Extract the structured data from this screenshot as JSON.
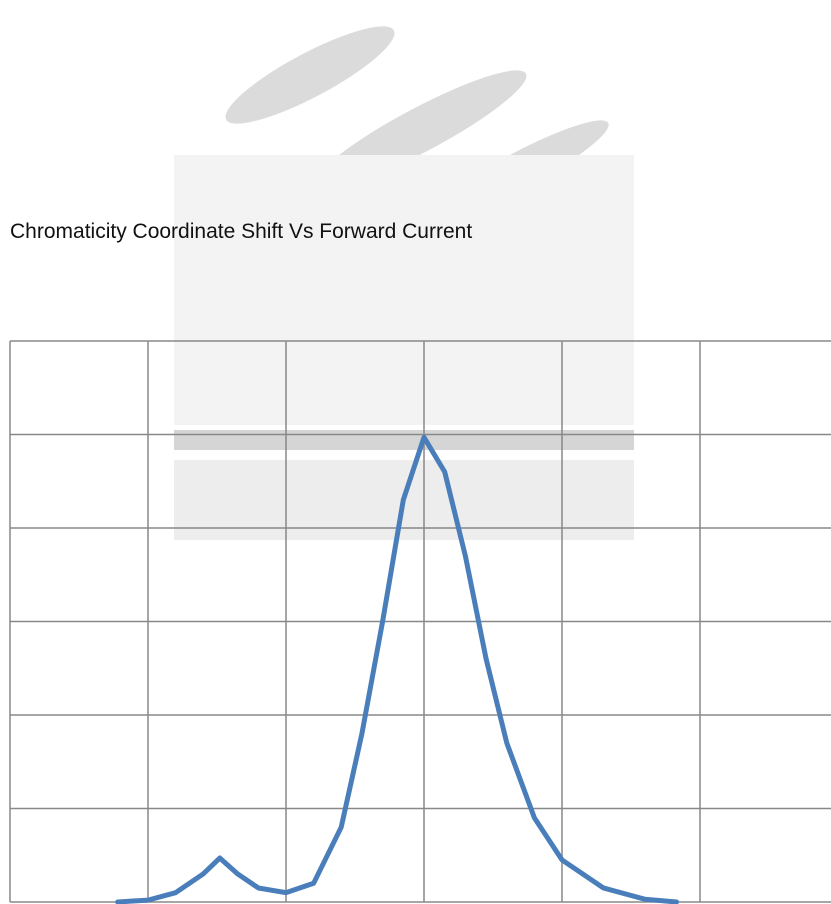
{
  "chart_data": {
    "type": "line",
    "title": "Chromaticity Coordinate Shift Vs Forward Current",
    "x": [
      0.78,
      1.0,
      1.2,
      1.4,
      1.52,
      1.65,
      1.8,
      2.0,
      2.2,
      2.4,
      2.55,
      2.7,
      2.85,
      3.0,
      3.15,
      3.3,
      3.45,
      3.6,
      3.8,
      4.0,
      4.3,
      4.6,
      4.83
    ],
    "series": [
      {
        "color": "#4a7ebb",
        "values": [
          0,
          0.02,
          0.1,
          0.3,
          0.47,
          0.3,
          0.15,
          0.1,
          0.2,
          0.8,
          1.8,
          3.0,
          4.3,
          4.97,
          4.6,
          3.7,
          2.6,
          1.7,
          0.9,
          0.45,
          0.15,
          0.03,
          0
        ]
      }
    ],
    "xlim": [
      0,
      6
    ],
    "ylim": [
      0,
      6
    ],
    "xticks": [
      0,
      1,
      2,
      3,
      4,
      5,
      6
    ],
    "yticks": [
      0,
      1,
      2,
      3,
      4,
      5,
      6
    ],
    "grid": true
  }
}
